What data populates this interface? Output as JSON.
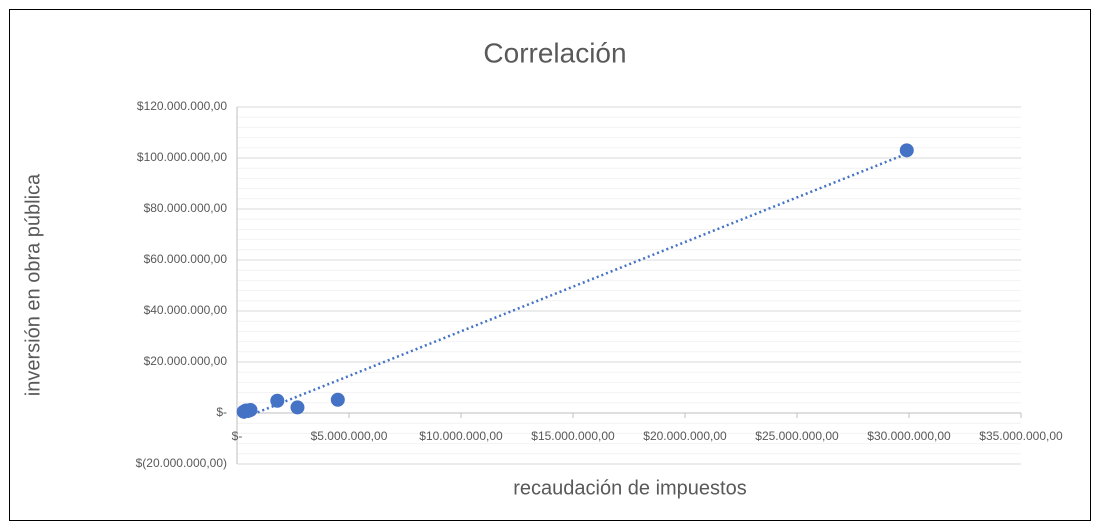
{
  "chart_data": {
    "type": "scatter",
    "title": "Correlación",
    "x_label": "recaudación de impuestos",
    "y_label": "inversión en obra pública",
    "series": [
      {
        "name": "inversión en obra pública",
        "color": "#4472c4",
        "x": [
          300000,
          400000,
          500000,
          600000,
          1800000,
          2700000,
          4500000,
          29900000
        ],
        "values": [
          500000,
          1000000,
          800000,
          1200000,
          4800000,
          2200000,
          5200000,
          103000000
        ]
      }
    ],
    "trendline": true,
    "trendline_color": "#4472c4",
    "xlim": [
      0,
      35000000
    ],
    "xticks": [
      {
        "value": 0,
        "label": "$-"
      },
      {
        "value": 5000000,
        "label": "$5.000.000,00"
      },
      {
        "value": 10000000,
        "label": "$10.000.000,00"
      },
      {
        "value": 15000000,
        "label": "$15.000.000,00"
      },
      {
        "value": 20000000,
        "label": "$20.000.000,00"
      },
      {
        "value": 25000000,
        "label": "$25.000.000,00"
      },
      {
        "value": 30000000,
        "label": "$30.000.000,00"
      },
      {
        "value": 35000000,
        "label": "$35.000.000,00"
      }
    ],
    "ylim": [
      -20000000,
      120000000
    ],
    "yticks": [
      {
        "value": -20000000,
        "label": "$(20.000.000,00)"
      },
      {
        "value": 0,
        "label": "$-"
      },
      {
        "value": 20000000,
        "label": "$20.000.000,00"
      },
      {
        "value": 40000000,
        "label": "$40.000.000,00"
      },
      {
        "value": 60000000,
        "label": "$60.000.000,00"
      },
      {
        "value": 80000000,
        "label": "$80.000.000,00"
      },
      {
        "value": 100000000,
        "label": "$100.000.000,00"
      },
      {
        "value": 120000000,
        "label": "$120.000.000,00"
      }
    ],
    "grid": true,
    "minor_grid": true
  }
}
